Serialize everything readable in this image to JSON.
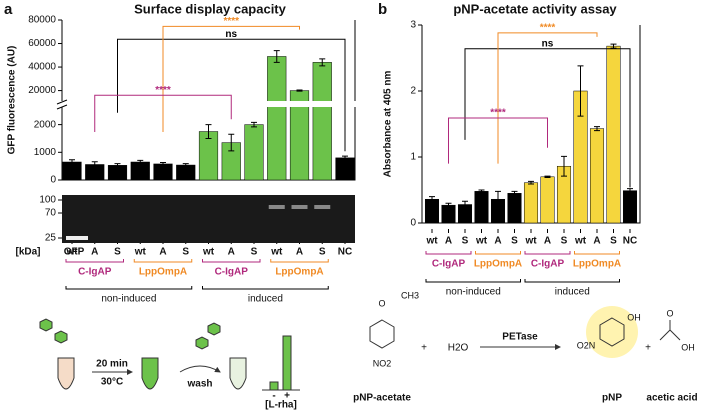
{
  "chart_data": [
    {
      "type": "bar",
      "label": "a",
      "title": "Surface display capacity",
      "ylabel": "GFP fluorescence (AU)",
      "categories": [
        "wt",
        "A",
        "S",
        "wt",
        "A",
        "S",
        "wt",
        "A",
        "S",
        "wt",
        "A",
        "S",
        "NC"
      ],
      "values": [
        650,
        560,
        530,
        650,
        580,
        540,
        1750,
        1350,
        2000,
        49000,
        20000,
        44000,
        800
      ],
      "errors": [
        80,
        100,
        60,
        60,
        50,
        50,
        250,
        300,
        80,
        5000,
        500,
        3000,
        60
      ],
      "colors": [
        "#000000",
        "#000000",
        "#000000",
        "#000000",
        "#000000",
        "#000000",
        "#6cc24a",
        "#6cc24a",
        "#6cc24a",
        "#6cc24a",
        "#6cc24a",
        "#6cc24a",
        "#000000"
      ],
      "ylim": [
        0,
        80000
      ],
      "ybreak": [
        2600,
        12000
      ],
      "yticks": [
        0,
        1000,
        2000,
        20000,
        40000,
        60000,
        80000
      ],
      "groups": [
        {
          "label": "C-IgAP",
          "color": "#b0287c"
        },
        {
          "label": "LppOmpA",
          "color": "#f08a24"
        },
        {
          "label": "C-IgAP",
          "color": "#b0287c"
        },
        {
          "label": "LppOmpA",
          "color": "#f08a24"
        }
      ],
      "conditions": [
        "non-induced",
        "induced"
      ],
      "significance": [
        {
          "label": "ns",
          "color": "#000000"
        },
        {
          "label": "****",
          "color": "#f08a24"
        },
        {
          "label": "****",
          "color": "#b0287c"
        }
      ],
      "gel": {
        "ticks": [
          100,
          70,
          25
        ],
        "unit_label": "[kDa]",
        "lane_label": "GFP"
      },
      "schematic": {
        "time": "20 min",
        "temperature": "30°C",
        "wash": "wash",
        "inducer": "[L-rha]",
        "minus": "-",
        "plus": "+"
      }
    },
    {
      "type": "bar",
      "label": "b",
      "title": "pNP-acetate activity assay",
      "ylabel": "Absorbance at 405 nm",
      "categories": [
        "wt",
        "A",
        "S",
        "wt",
        "A",
        "S",
        "wt",
        "A",
        "S",
        "wt",
        "A",
        "S",
        "NC"
      ],
      "values": [
        0.36,
        0.27,
        0.28,
        0.48,
        0.36,
        0.45,
        0.61,
        0.7,
        0.86,
        2.0,
        1.43,
        2.68,
        0.49
      ],
      "errors": [
        0.04,
        0.03,
        0.05,
        0.02,
        0.12,
        0.03,
        0.02,
        0.01,
        0.15,
        0.38,
        0.03,
        0.03,
        0.03
      ],
      "colors": [
        "#000000",
        "#000000",
        "#000000",
        "#000000",
        "#000000",
        "#000000",
        "#f5d63d",
        "#f5d63d",
        "#f5d63d",
        "#f5d63d",
        "#f5d63d",
        "#f5d63d",
        "#000000"
      ],
      "ylim": [
        0,
        3
      ],
      "yticks": [
        0,
        1,
        2,
        3
      ],
      "groups": [
        {
          "label": "C-IgAP",
          "color": "#b0287c"
        },
        {
          "label": "LppOmpA",
          "color": "#f08a24"
        },
        {
          "label": "C-IgAP",
          "color": "#b0287c"
        },
        {
          "label": "LppOmpA",
          "color": "#f08a24"
        }
      ],
      "conditions": [
        "non-induced",
        "induced"
      ],
      "significance": [
        {
          "label": "ns",
          "color": "#000000"
        },
        {
          "label": "****",
          "color": "#f08a24"
        },
        {
          "label": "****",
          "color": "#b0287c"
        }
      ],
      "reaction": {
        "substrate": "pNP-acetate",
        "plus": "+",
        "water": "H2O",
        "enzyme": "PETase",
        "product": "pNP",
        "byproduct": "acetic acid",
        "atoms": [
          "O",
          "CH3",
          "NO2",
          "OH",
          "O2N",
          "O",
          "OH"
        ]
      }
    }
  ]
}
